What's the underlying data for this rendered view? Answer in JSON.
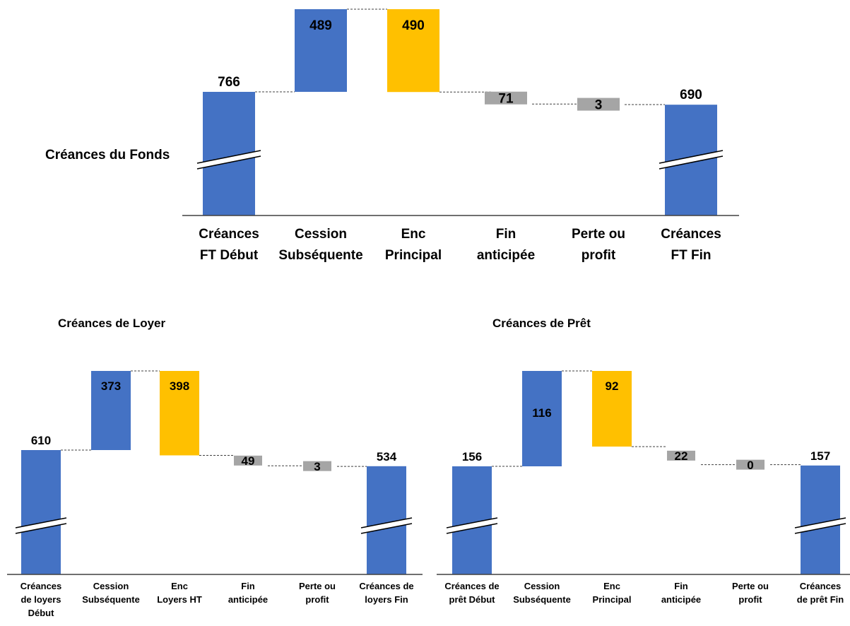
{
  "colors": {
    "start": "#4472C4",
    "cession": "#4472C4",
    "enc": "#FFC000",
    "small": "#A5A5A5",
    "end": "#4472C4",
    "connector": "#404040",
    "axis": "#404040",
    "value_light": "#FFFFFF",
    "value_dark": "#000000"
  },
  "chart_data": [
    {
      "type": "bar",
      "subtype": "waterfall",
      "title": "Créances du Fonds",
      "categories": [
        [
          "Créances",
          "FT Début"
        ],
        [
          "Cession",
          "Subséquente"
        ],
        [
          "Enc",
          "Principal"
        ],
        [
          "Fin",
          "anticipée"
        ],
        [
          "Perte ou",
          "profit"
        ],
        [
          "Créances",
          "FT Fin"
        ]
      ],
      "values": [
        766,
        489,
        490,
        71,
        3,
        690
      ],
      "value_labels": [
        "766",
        "489",
        "490",
        "71",
        "3",
        "690"
      ],
      "steps": [
        "total",
        "increase",
        "decrease",
        "decrease",
        "decrease",
        "total"
      ],
      "axis_break": true,
      "grid": false,
      "legend": "none"
    },
    {
      "type": "bar",
      "subtype": "waterfall",
      "title": "Créances de Loyer",
      "categories": [
        [
          "Créances",
          "de loyers",
          "Début"
        ],
        [
          "Cession",
          "Subséquente"
        ],
        [
          "Enc",
          "Loyers HT"
        ],
        [
          "Fin",
          "anticipée"
        ],
        [
          "Perte ou",
          "profit"
        ],
        [
          "Créances de",
          "loyers Fin"
        ]
      ],
      "values": [
        610,
        373,
        398,
        49,
        3,
        534
      ],
      "value_labels": [
        "610",
        "373",
        "398",
        "49",
        "3",
        "534"
      ],
      "steps": [
        "total",
        "increase",
        "decrease",
        "decrease",
        "decrease",
        "total"
      ],
      "axis_break": true,
      "grid": false,
      "legend": "none"
    },
    {
      "type": "bar",
      "subtype": "waterfall",
      "title": "Créances de Prêt",
      "categories": [
        [
          "Créances de",
          "prêt Début"
        ],
        [
          "Cession",
          "Subséquente"
        ],
        [
          "Enc",
          "Principal"
        ],
        [
          "Fin",
          "anticipée"
        ],
        [
          "Perte ou",
          "profit"
        ],
        [
          "Créances",
          "de prêt Fin"
        ]
      ],
      "values": [
        156,
        116,
        92,
        22,
        0,
        157
      ],
      "value_labels": [
        "156",
        "116",
        "92",
        "22",
        "0",
        "157"
      ],
      "steps": [
        "total",
        "increase",
        "decrease",
        "decrease",
        "decrease",
        "total"
      ],
      "axis_break": true,
      "grid": false,
      "legend": "none"
    }
  ]
}
